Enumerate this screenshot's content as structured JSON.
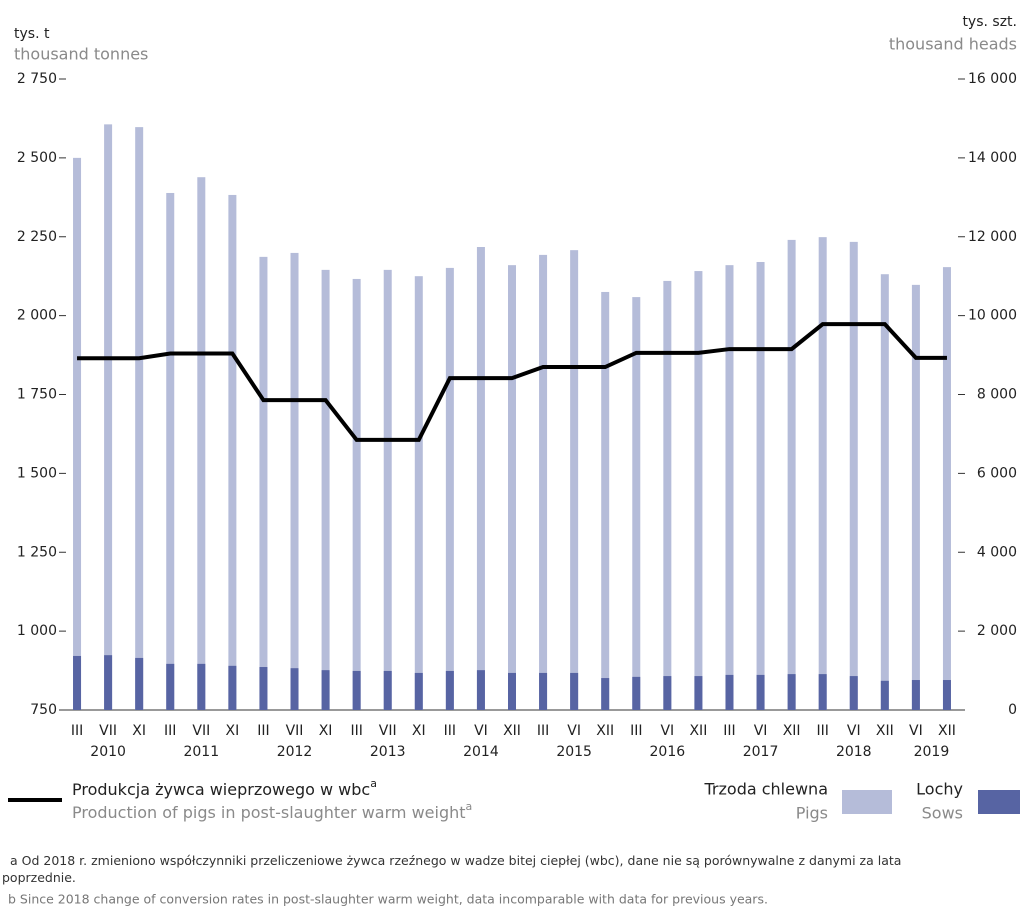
{
  "chart_data": {
    "type": "bar-line",
    "y_label": "tys. t",
    "y_label_en": "thousand tonnes",
    "y2_label": "tys. szt.",
    "y2_label_en": "thousand heads",
    "groups": [
      {
        "name": "2010",
        "categories": [
          "III",
          "VII",
          "XI"
        ]
      },
      {
        "name": "2011",
        "categories": [
          "III",
          "VII",
          "XI"
        ]
      },
      {
        "name": "2012",
        "categories": [
          "III",
          "VII",
          "XI"
        ]
      },
      {
        "name": "2013",
        "categories": [
          "III",
          "VII",
          "XI"
        ]
      },
      {
        "name": "2014",
        "categories": [
          "III",
          "VI",
          "XII"
        ]
      },
      {
        "name": "2015",
        "categories": [
          "III",
          "VI",
          "XII"
        ]
      },
      {
        "name": "2016",
        "categories": [
          "III",
          "VI",
          "XII"
        ]
      },
      {
        "name": "2017",
        "categories": [
          "III",
          "VI",
          "XII"
        ]
      },
      {
        "name": "2018",
        "categories": [
          "III",
          "VI",
          "XII"
        ]
      },
      {
        "name": "2019",
        "categories": [
          "VI",
          "XII"
        ]
      }
    ],
    "ylim": [
      750,
      2750
    ],
    "yticks": [
      {
        "value": 750,
        "label": "750"
      },
      {
        "value": 1000,
        "label": "1 000"
      },
      {
        "value": 1250,
        "label": "1 250"
      },
      {
        "value": 1500,
        "label": "1 500"
      },
      {
        "value": 1750,
        "label": "1 750"
      },
      {
        "value": 2000,
        "label": "2 000"
      },
      {
        "value": 2250,
        "label": "2 250"
      },
      {
        "value": 2500,
        "label": "2 500"
      },
      {
        "value": 2750,
        "label": "2 750"
      }
    ],
    "y2lim": [
      0,
      16000
    ],
    "y2ticks": [
      0,
      {
        "value": 2000,
        "label": "2 000"
      },
      {
        "value": 4000,
        "label": "4 000"
      },
      {
        "value": 6000,
        "label": "6 000"
      },
      {
        "value": 8000,
        "label": "8 000"
      },
      {
        "value": 10000,
        "label": "10 000"
      },
      {
        "value": 12000,
        "label": "12 000"
      },
      {
        "value": 14000,
        "label": "14 000"
      },
      {
        "value": 16000,
        "label": "16 000"
      }
    ],
    "series": [
      {
        "name": "Trzoda chlewna",
        "name_en": "Pigs",
        "kind": "bar",
        "axis": "y2",
        "color": "#b5bcd9",
        "values": [
          14000,
          14850,
          14780,
          13110,
          13510,
          13060,
          11490,
          11590,
          11160,
          10930,
          11160,
          11000,
          11210,
          11740,
          11280,
          11540,
          11660,
          10600,
          10470,
          10880,
          11130,
          11280,
          11360,
          11920,
          11990,
          11870,
          11050,
          10780,
          11230
        ]
      },
      {
        "name": "Lochy",
        "name_en": "Sows",
        "kind": "bar",
        "axis": "y2",
        "color": "#5764a3",
        "values": [
          1370,
          1390,
          1320,
          1170,
          1170,
          1120,
          1090,
          1060,
          1010,
          990,
          990,
          940,
          990,
          1010,
          940,
          940,
          940,
          810,
          840,
          860,
          860,
          890,
          890,
          910,
          910,
          860,
          740,
          760,
          760
        ]
      },
      {
        "name": "Produkcja żywca wieprzowego w wbc",
        "name_en": "Production of pigs in post-slaughter warm weight",
        "note_marker": "a",
        "kind": "line",
        "axis": "y",
        "color": "#000000",
        "values": [
          1865,
          1865,
          1865,
          1880,
          1880,
          1880,
          1732,
          1732,
          1732,
          1606,
          1606,
          1606,
          1802,
          1802,
          1802,
          1837,
          1837,
          1837,
          1882,
          1882,
          1882,
          1894,
          1894,
          1894,
          1973,
          1973,
          1973,
          1866,
          1866
        ]
      }
    ],
    "footnotes": [
      "a Od 2018 r. zmieniono współczynniki przeliczeniowe żywca rzeźnego w wadze bitej ciepłej  (wbc), dane nie są porównywalne z danymi za lata poprzednie.",
      "b Since 2018 change of conversion rates in post-slaughter warm weight, data incomparable with data for previous years."
    ]
  }
}
